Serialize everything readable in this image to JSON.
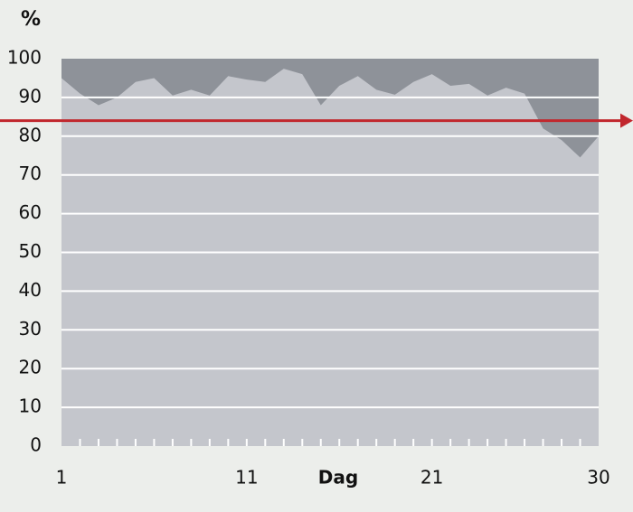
{
  "chart_data": {
    "type": "area",
    "y_label": "%",
    "x_label": "Dag",
    "x": [
      1,
      2,
      3,
      4,
      5,
      6,
      7,
      8,
      9,
      10,
      11,
      12,
      13,
      14,
      15,
      16,
      17,
      18,
      19,
      20,
      21,
      22,
      23,
      24,
      25,
      26,
      27,
      28,
      29,
      30
    ],
    "values": [
      95,
      91,
      88,
      90,
      94,
      95,
      90.5,
      92,
      90.5,
      95.5,
      94.6,
      94,
      97.4,
      96,
      88,
      93,
      95.5,
      92,
      90.7,
      94,
      96,
      93,
      93.5,
      90.5,
      92.5,
      91,
      82,
      79,
      74.5,
      80
    ],
    "color": "#c4c6cc",
    "plot_background": "#8e9299",
    "xlim": [
      1,
      30
    ],
    "xticks": [
      1,
      11,
      21,
      30
    ],
    "ylim": [
      0,
      100
    ],
    "yticks": [
      0,
      10,
      20,
      30,
      40,
      50,
      60,
      70,
      80,
      90,
      100
    ],
    "grid": true,
    "target": 84,
    "target_color": "#c1272d"
  }
}
